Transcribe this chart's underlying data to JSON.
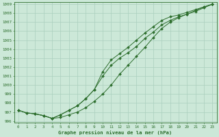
{
  "xlabel": "Graphe pression niveau de la mer (hPa)",
  "xlim": [
    0,
    23
  ],
  "ylim": [
    996,
    1009
  ],
  "yticks": [
    996,
    997,
    998,
    999,
    1000,
    1001,
    1002,
    1003,
    1004,
    1005,
    1006,
    1007,
    1008,
    1009
  ],
  "xticks": [
    0,
    1,
    2,
    3,
    4,
    5,
    6,
    7,
    8,
    9,
    10,
    11,
    12,
    13,
    14,
    15,
    16,
    17,
    18,
    19,
    20,
    21,
    22,
    23
  ],
  "background_color": "#cce8d8",
  "grid_color": "#aacfbe",
  "line_color": "#2d6e2d",
  "series1": [
    997.2,
    996.9,
    996.8,
    996.6,
    996.3,
    996.7,
    997.2,
    997.7,
    998.5,
    999.5,
    1001.0,
    1002.2,
    1003.0,
    1003.6,
    1004.3,
    1005.2,
    1005.9,
    1006.7,
    1007.2,
    1007.6,
    1007.9,
    1008.2,
    1008.6,
    1009.0
  ],
  "series2": [
    997.2,
    996.9,
    996.8,
    996.6,
    996.3,
    996.4,
    996.7,
    997.0,
    997.5,
    998.2,
    999.0,
    1000.0,
    1001.2,
    1002.2,
    1003.2,
    1004.2,
    1005.3,
    1006.3,
    1007.0,
    1007.5,
    1007.9,
    1008.3,
    1008.7,
    1009.0
  ],
  "series3": [
    997.2,
    996.9,
    996.8,
    996.6,
    996.3,
    996.7,
    997.2,
    997.7,
    998.5,
    999.5,
    1001.5,
    1002.8,
    1003.5,
    1004.2,
    1005.0,
    1005.8,
    1006.5,
    1007.2,
    1007.6,
    1007.8,
    1008.1,
    1008.4,
    1008.7,
    1009.0
  ]
}
